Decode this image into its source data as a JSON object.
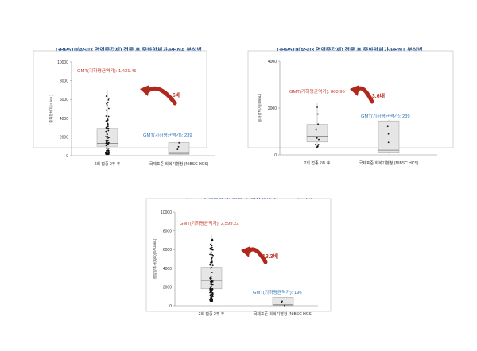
{
  "chart_data": [
    {
      "type": "box",
      "title": "GBP510(AS03 면역증강제) 접종 후 중화항체가-PBNA 분석법",
      "ylabel": "중화항체가(IU/mL)",
      "ylim": [
        0,
        10000
      ],
      "yticks": [
        0,
        2000,
        4000,
        6000,
        8000,
        10000
      ],
      "categories": [
        "2회 접종 2주 후",
        "국제표준 회복기혈청 (NIBSC HCS)"
      ],
      "boxes": [
        {
          "q1": 1000,
          "median": 1300,
          "q3": 2900,
          "min": 150,
          "max": 7000
        },
        {
          "q1": 150,
          "median": 250,
          "q3": 1400,
          "min": 100,
          "max": 1500
        }
      ],
      "gmt_labels": [
        "GMT(기하평균역가): 1,431.45",
        "GMT(기하평균역가): 239"
      ],
      "fold_label": "6배"
    },
    {
      "type": "box",
      "title": "GBP510(AS03 면역증강제) 접종 후 중화항체가-PRNT 분석법",
      "ylabel": "중화항체가(IU/mL)",
      "ylim": [
        0,
        4000
      ],
      "yticks": [
        0,
        2000,
        4000
      ],
      "categories": [
        "2회 접종 2주 후",
        "국제표준 회복기혈청 (NIBSC HCS)"
      ],
      "boxes": [
        {
          "q1": 550,
          "median": 800,
          "q3": 1300,
          "min": 300,
          "max": 2200
        },
        {
          "q1": 80,
          "median": 200,
          "q3": 1450,
          "min": 50,
          "max": 1500
        }
      ],
      "gmt_labels": [
        "GMT(기하평균역가): 860.96",
        "GMT(기하평균역가): 239"
      ],
      "fold_label": "3.6배"
    },
    {
      "type": "box",
      "title": "GBP510(AS03 면역증강제) 접종 후 결합항체가 -ELISA 분석법",
      "ylabel": "결합항체가(IgG)(EAU/mL)",
      "ylim": [
        0,
        10000
      ],
      "yticks": [
        0,
        2000,
        4000,
        6000,
        8000,
        10000
      ],
      "categories": [
        "2회 접종 2주 후",
        "국제표준 회복기혈청 (NIBSC HCS)"
      ],
      "boxes": [
        {
          "q1": 1800,
          "median": 2700,
          "q3": 4100,
          "min": 500,
          "max": 7600
        },
        {
          "q1": 50,
          "median": 100,
          "q3": 900,
          "min": 20,
          "max": 900
        }
      ],
      "gmt_labels": [
        "GMT(기하평균역가): 2,599.22",
        "GMT(기하평균역가): 196"
      ],
      "fold_label": "13.3배"
    }
  ],
  "colors": {
    "title": "#1f4e8c",
    "gmt_high": "#c0392b",
    "gmt_low": "#2e75b6",
    "fold": "#c0392b",
    "arrow": "#b0281c",
    "box_fill": "#e6e6e6",
    "box_stroke": "#aaaaaa"
  }
}
